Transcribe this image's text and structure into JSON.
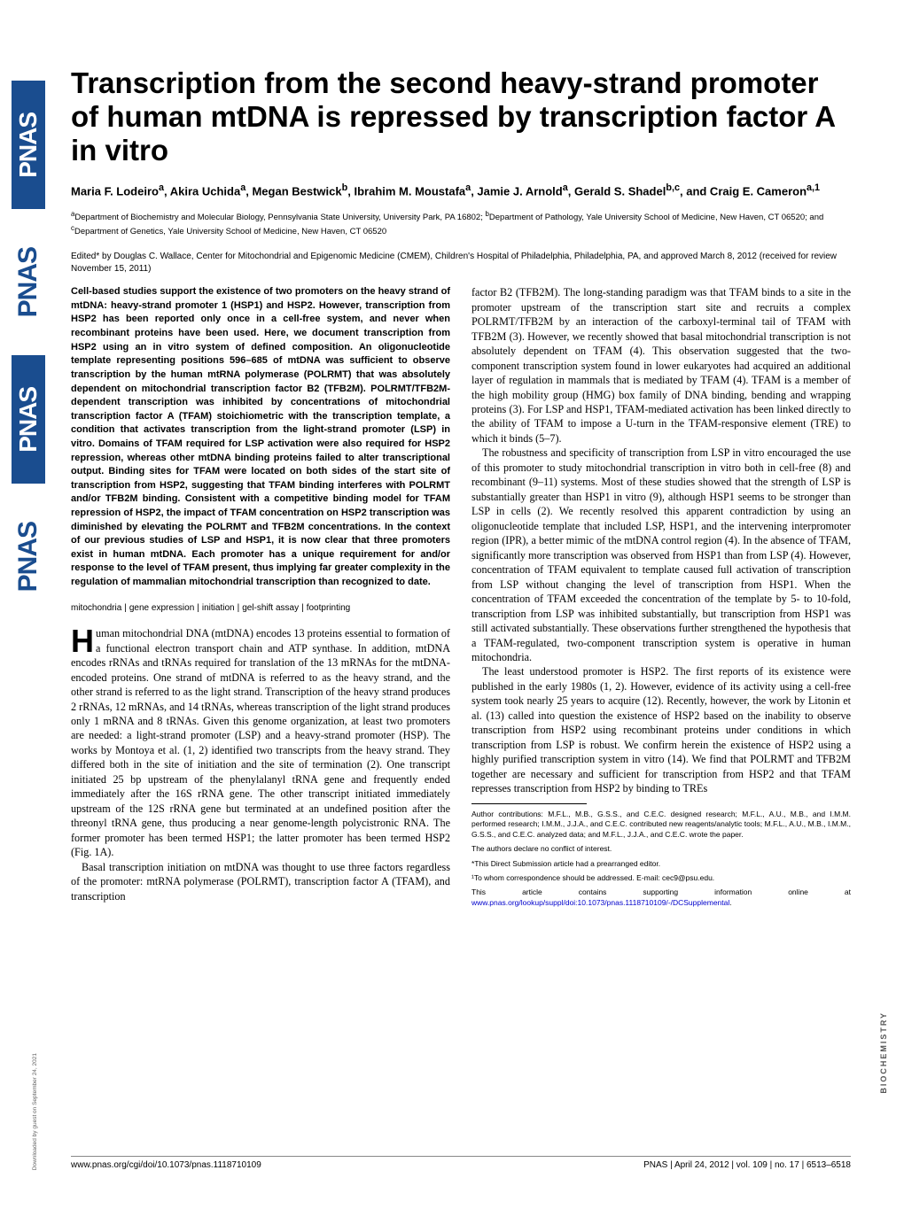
{
  "journal": {
    "logo_text": "PNAS",
    "sidebar_repeats": 4
  },
  "article": {
    "title": "Transcription from the second heavy-strand promoter of human mtDNA is repressed by transcription factor A in vitro",
    "authors_html": "Maria F. Lodeiro<sup>a</sup>, Akira Uchida<sup>a</sup>, Megan Bestwick<sup>b</sup>, Ibrahim M. Moustafa<sup>a</sup>, Jamie J. Arnold<sup>a</sup>, Gerald S. Shadel<sup>b,c</sup>, and Craig E. Cameron<sup>a,1</sup>",
    "affiliations_html": "<sup>a</sup>Department of Biochemistry and Molecular Biology, Pennsylvania State University, University Park, PA 16802; <sup>b</sup>Department of Pathology, Yale University School of Medicine, New Haven, CT 06520; and <sup>c</sup>Department of Genetics, Yale University School of Medicine, New Haven, CT 06520",
    "edited": "Edited* by Douglas C. Wallace, Center for Mitochondrial and Epigenomic Medicine (CMEM), Children's Hospital of Philadelphia, Philadelphia, PA, and approved March 8, 2012 (received for review November 15, 2011)",
    "abstract": "Cell-based studies support the existence of two promoters on the heavy strand of mtDNA: heavy-strand promoter 1 (HSP1) and HSP2. However, transcription from HSP2 has been reported only once in a cell-free system, and never when recombinant proteins have been used. Here, we document transcription from HSP2 using an in vitro system of defined composition. An oligonucleotide template representing positions 596–685 of mtDNA was sufficient to observe transcription by the human mtRNA polymerase (POLRMT) that was absolutely dependent on mitochondrial transcription factor B2 (TFB2M). POLRMT/TFB2M-dependent transcription was inhibited by concentrations of mitochondrial transcription factor A (TFAM) stoichiometric with the transcription template, a condition that activates transcription from the light-strand promoter (LSP) in vitro. Domains of TFAM required for LSP activation were also required for HSP2 repression, whereas other mtDNA binding proteins failed to alter transcriptional output. Binding sites for TFAM were located on both sides of the start site of transcription from HSP2, suggesting that TFAM binding interferes with POLRMT and/or TFB2M binding. Consistent with a competitive binding model for TFAM repression of HSP2, the impact of TFAM concentration on HSP2 transcription was diminished by elevating the POLRMT and TFB2M concentrations. In the context of our previous studies of LSP and HSP1, it is now clear that three promoters exist in human mtDNA. Each promoter has a unique requirement for and/or response to the level of TFAM present, thus implying far greater complexity in the regulation of mammalian mitochondrial transcription than recognized to date.",
    "keywords": [
      "mitochondria",
      "gene expression",
      "initiation",
      "gel-shift assay",
      "footprinting"
    ],
    "body_col1": {
      "p1": "uman mitochondrial DNA (mtDNA) encodes 13 proteins essential to formation of a functional electron transport chain and ATP synthase. In addition, mtDNA encodes rRNAs and tRNAs required for translation of the 13 mRNAs for the mtDNA-encoded proteins. One strand of mtDNA is referred to as the heavy strand, and the other strand is referred to as the light strand. Transcription of the heavy strand produces 2 rRNAs, 12 mRNAs, and 14 tRNAs, whereas transcription of the light strand produces only 1 mRNA and 8 tRNAs. Given this genome organization, at least two promoters are needed: a light-strand promoter (LSP) and a heavy-strand promoter (HSP). The works by Montoya et al. (1, 2) identified two transcripts from the heavy strand. They differed both in the site of initiation and the site of termination (2). One transcript initiated 25 bp upstream of the phenylalanyl tRNA gene and frequently ended immediately after the 16S rRNA gene. The other transcript initiated immediately upstream of the 12S rRNA gene but terminated at an undefined position after the threonyl tRNA gene, thus producing a near genome-length polycistronic RNA. The former promoter has been termed HSP1; the latter promoter has been termed HSP2 (Fig. 1A).",
      "p2": "Basal transcription initiation on mtDNA was thought to use three factors regardless of the promoter: mtRNA polymerase (POLRMT), transcription factor A (TFAM), and transcription"
    },
    "body_col2": {
      "p1": "factor B2 (TFB2M). The long-standing paradigm was that TFAM binds to a site in the promoter upstream of the transcription start site and recruits a complex POLRMT/TFB2M by an interaction of the carboxyl-terminal tail of TFAM with TFB2M (3). However, we recently showed that basal mitochondrial transcription is not absolutely dependent on TFAM (4). This observation suggested that the two-component transcription system found in lower eukaryotes had acquired an additional layer of regulation in mammals that is mediated by TFAM (4). TFAM is a member of the high mobility group (HMG) box family of DNA binding, bending and wrapping proteins (3). For LSP and HSP1, TFAM-mediated activation has been linked directly to the ability of TFAM to impose a U-turn in the TFAM-responsive element (TRE) to which it binds (5–7).",
      "p2": "The robustness and specificity of transcription from LSP in vitro encouraged the use of this promoter to study mitochondrial transcription in vitro both in cell-free (8) and recombinant (9–11) systems. Most of these studies showed that the strength of LSP is substantially greater than HSP1 in vitro (9), although HSP1 seems to be stronger than LSP in cells (2). We recently resolved this apparent contradiction by using an oligonucleotide template that included LSP, HSP1, and the intervening interpromoter region (IPR), a better mimic of the mtDNA control region (4). In the absence of TFAM, significantly more transcription was observed from HSP1 than from LSP (4). However, concentration of TFAM equivalent to template caused full activation of transcription from LSP without changing the level of transcription from HSP1. When the concentration of TFAM exceeded the concentration of the template by 5- to 10-fold, transcription from LSP was inhibited substantially, but transcription from HSP1 was still activated substantially. These observations further strengthened the hypothesis that a TFAM-regulated, two-component transcription system is operative in human mitochondria.",
      "p3": "The least understood promoter is HSP2. The first reports of its existence were published in the early 1980s (1, 2). However, evidence of its activity using a cell-free system took nearly 25 years to acquire (12). Recently, however, the work by Litonin et al. (13) called into question the existence of HSP2 based on the inability to observe transcription from HSP2 using recombinant proteins under conditions in which transcription from LSP is robust. We confirm herein the existence of HSP2 using a highly purified transcription system in vitro (14). We find that POLRMT and TFB2M together are necessary and sufficient for transcription from HSP2 and that TFAM represses transcription from HSP2 by binding to TREs"
    },
    "footnotes": {
      "contributions": "Author contributions: M.F.L., M.B., G.S.S., and C.E.C. designed research; M.F.L., A.U., M.B., and I.M.M. performed research; I.M.M., J.J.A., and C.E.C. contributed new reagents/analytic tools; M.F.L., A.U., M.B., I.M.M., G.S.S., and C.E.C. analyzed data; and M.F.L., J.J.A., and C.E.C. wrote the paper.",
      "conflict": "The authors declare no conflict of interest.",
      "editor": "*This Direct Submission article had a prearranged editor.",
      "correspondence": "¹To whom correspondence should be addressed. E-mail: cec9@psu.edu.",
      "supporting_prefix": "This article contains supporting information online at ",
      "supporting_link": "www.pnas.org/lookup/suppl/doi:10.1073/pnas.1118710109/-/DCSupplemental",
      "supporting_suffix": "."
    }
  },
  "footer": {
    "doi": "www.pnas.org/cgi/doi/10.1073/pnas.1118710109",
    "citation": "PNAS | April 24, 2012 | vol. 109 | no. 17 | 6513–6518"
  },
  "category_label": "BIOCHEMISTRY",
  "download_note": "Downloaded by guest on September 24, 2021"
}
